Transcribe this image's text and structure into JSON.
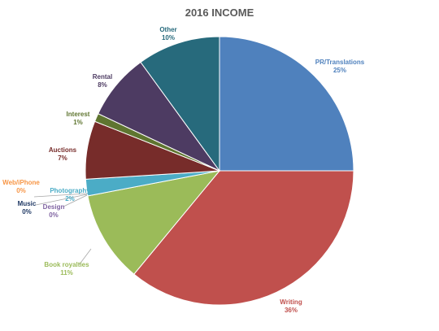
{
  "chart_data": {
    "type": "pie",
    "title": "2016 INCOME",
    "slices": [
      {
        "name": "PR/Translations",
        "value": 25,
        "label": "25%",
        "color": "#4f81bd"
      },
      {
        "name": "Writing",
        "value": 36,
        "label": "36%",
        "color": "#c0504d"
      },
      {
        "name": "Book royalties",
        "value": 11,
        "label": "11%",
        "color": "#9bbb59"
      },
      {
        "name": "Web/iPhone",
        "value": 0,
        "label": "0%",
        "color": "#f79646"
      },
      {
        "name": "Music",
        "value": 0,
        "label": "0%",
        "color": "#1f3864"
      },
      {
        "name": "Design",
        "value": 0,
        "label": "0%",
        "color": "#8064a2"
      },
      {
        "name": "Photography",
        "value": 2,
        "label": "2%",
        "color": "#4bacc6"
      },
      {
        "name": "Auctions",
        "value": 7,
        "label": "7%",
        "color": "#772c2a"
      },
      {
        "name": "Interest",
        "value": 1,
        "label": "1%",
        "color": "#5f7530"
      },
      {
        "name": "Rental",
        "value": 8,
        "label": "8%",
        "color": "#4d3b62"
      },
      {
        "name": "Other",
        "value": 10,
        "label": "10%",
        "color": "#276a7c"
      }
    ],
    "legend": "none"
  }
}
